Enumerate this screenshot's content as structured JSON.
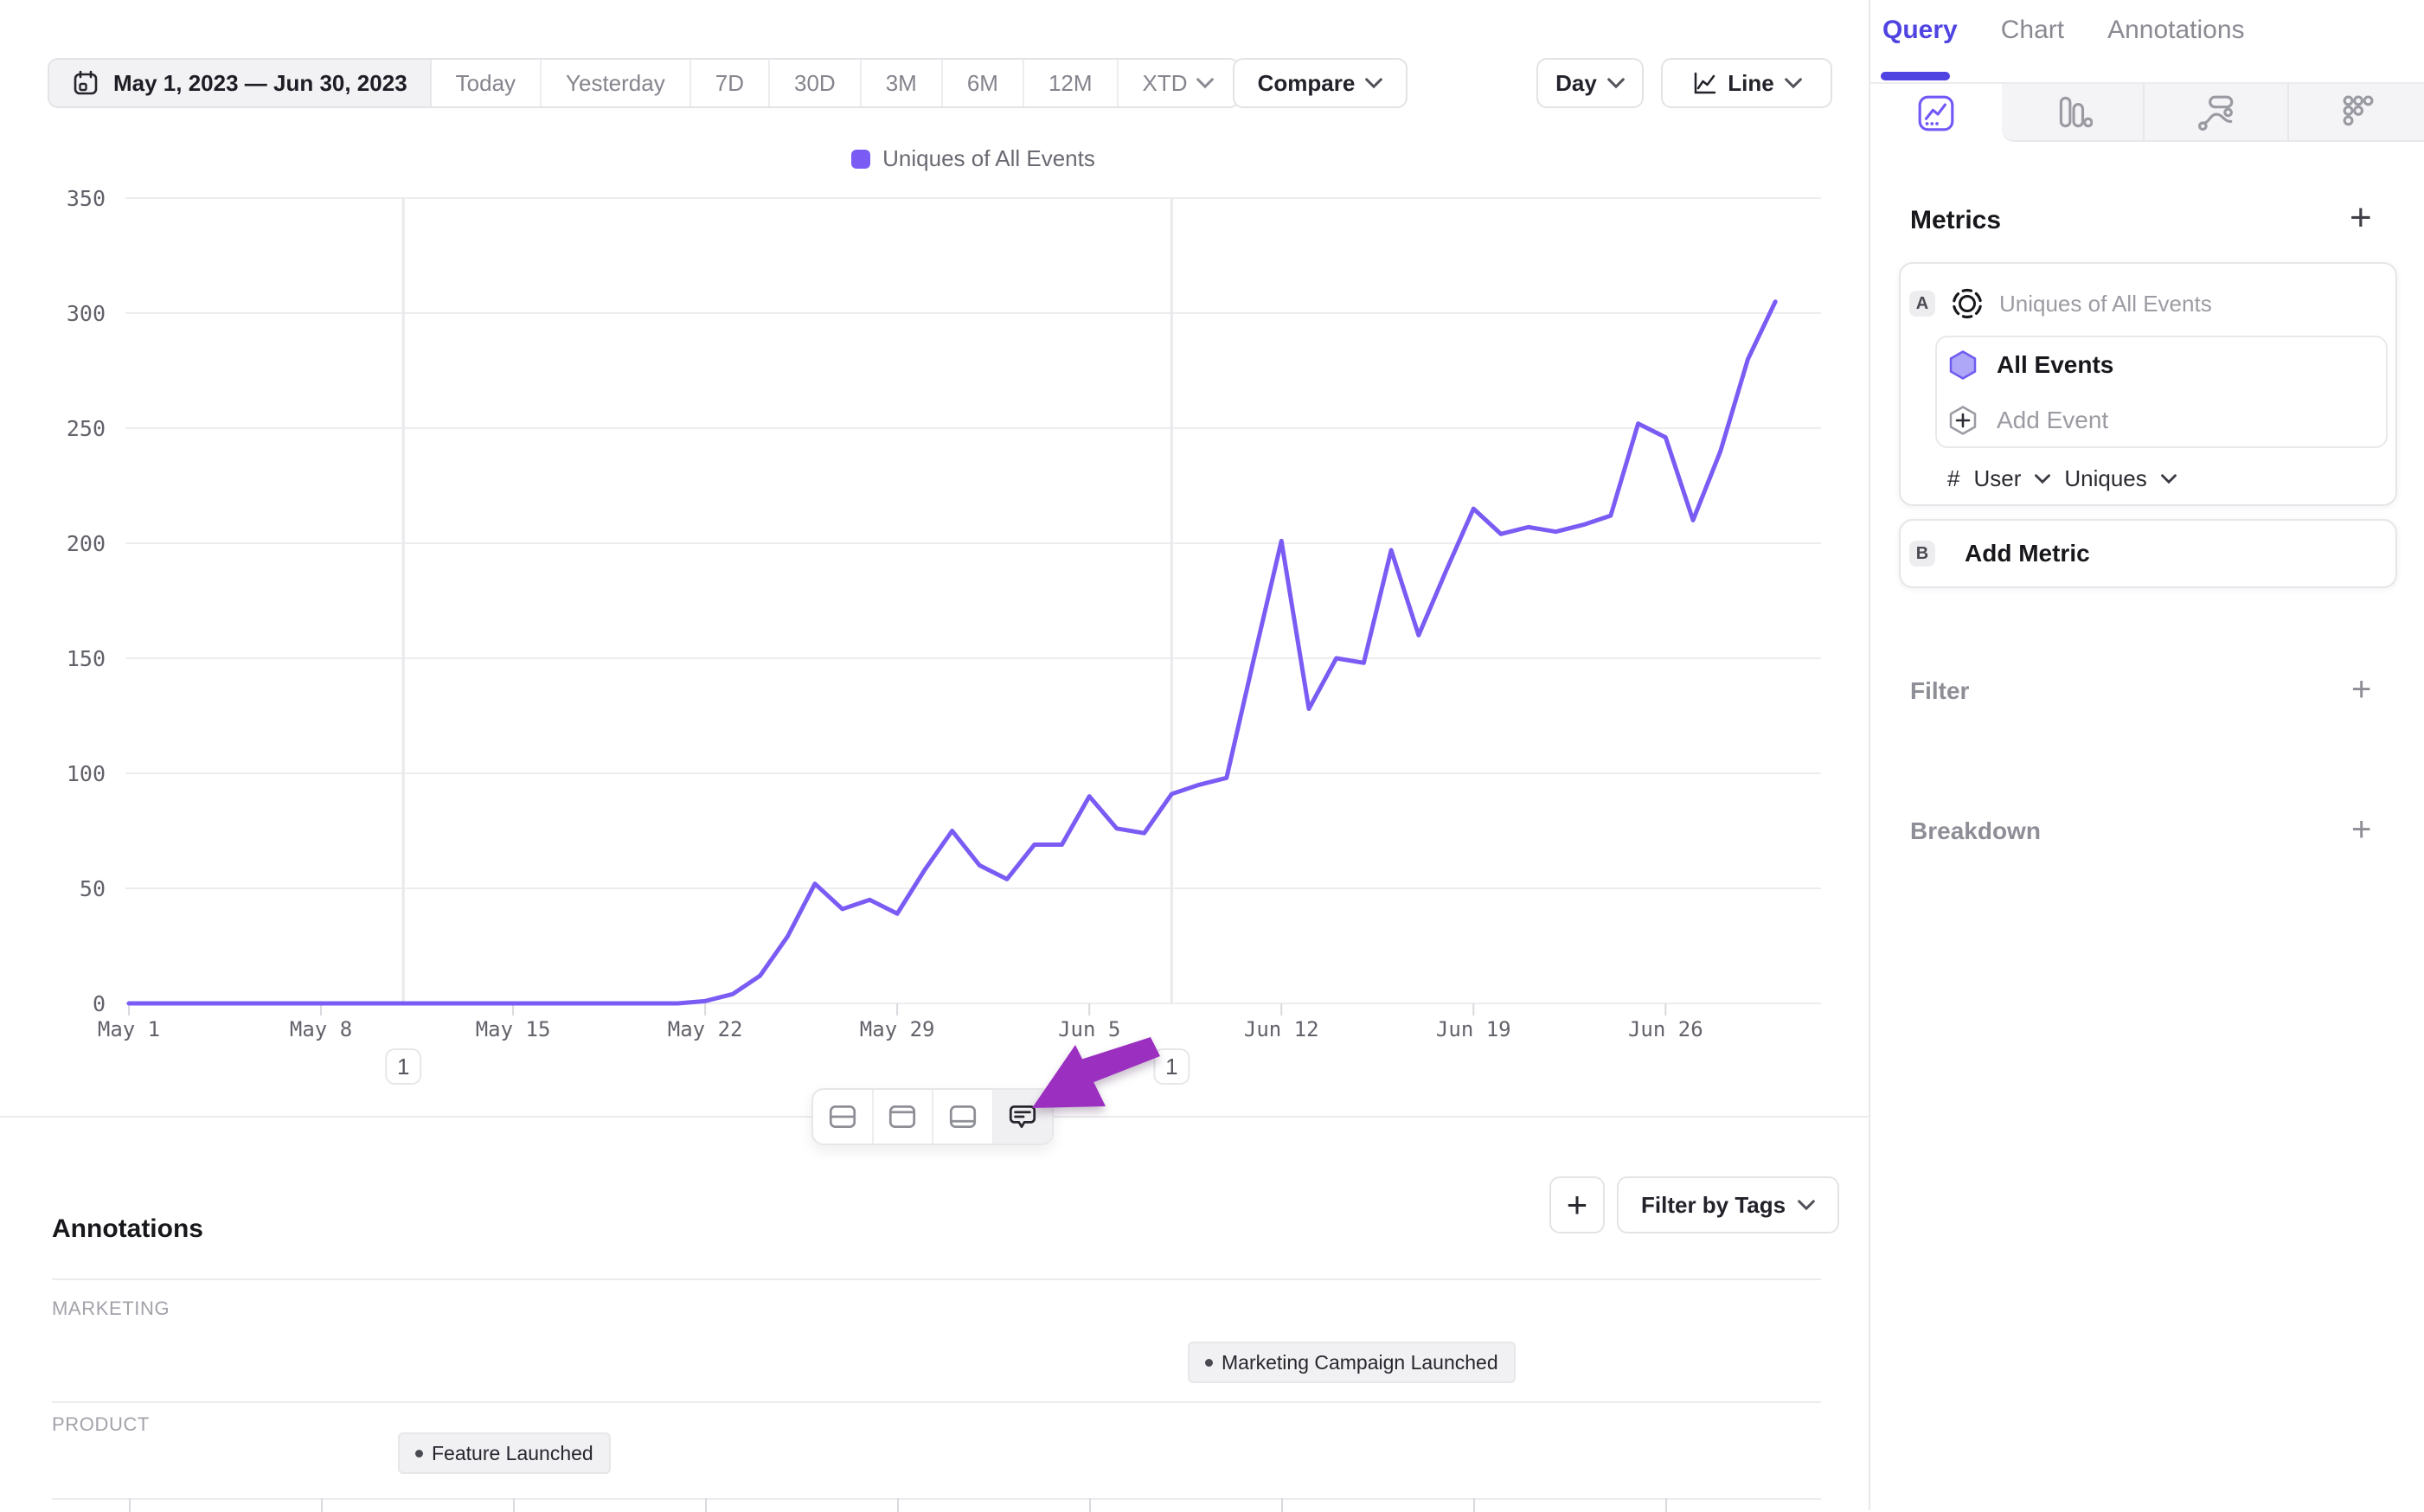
{
  "toolbar": {
    "date_range": "May 1, 2023 — Jun 30, 2023",
    "range_buttons": [
      "Today",
      "Yesterday",
      "7D",
      "30D",
      "3M",
      "6M",
      "12M"
    ],
    "xtd_label": "XTD",
    "compare_label": "Compare",
    "granularity_label": "Day",
    "chart_type_label": "Line"
  },
  "chart_data": {
    "type": "line",
    "series_name": "Uniques of All Events",
    "line_color": "#7a5cf4",
    "legend_position": "top-center",
    "grid": "horizontal",
    "ylim": [
      0,
      350
    ],
    "y_ticks": [
      350,
      300,
      250,
      200,
      150,
      100,
      50,
      0
    ],
    "x_tick_labels": [
      "May 1",
      "May 8",
      "May 15",
      "May 22",
      "May 29",
      "Jun 5",
      "Jun 12",
      "Jun 19",
      "Jun 26"
    ],
    "x": [
      "May 1",
      "May 2",
      "May 3",
      "May 4",
      "May 5",
      "May 6",
      "May 7",
      "May 8",
      "May 9",
      "May 10",
      "May 11",
      "May 12",
      "May 13",
      "May 14",
      "May 15",
      "May 16",
      "May 17",
      "May 18",
      "May 19",
      "May 20",
      "May 21",
      "May 22",
      "May 23",
      "May 24",
      "May 25",
      "May 26",
      "May 27",
      "May 28",
      "May 29",
      "May 30",
      "May 31",
      "Jun 1",
      "Jun 2",
      "Jun 3",
      "Jun 4",
      "Jun 5",
      "Jun 6",
      "Jun 7",
      "Jun 8",
      "Jun 9",
      "Jun 10",
      "Jun 11",
      "Jun 12",
      "Jun 13",
      "Jun 14",
      "Jun 15",
      "Jun 16",
      "Jun 17",
      "Jun 18",
      "Jun 19",
      "Jun 20",
      "Jun 21",
      "Jun 22",
      "Jun 23",
      "Jun 24",
      "Jun 25",
      "Jun 26",
      "Jun 27",
      "Jun 28",
      "Jun 29",
      "Jun 30"
    ],
    "values": [
      0,
      0,
      0,
      0,
      0,
      0,
      0,
      0,
      0,
      0,
      0,
      0,
      0,
      0,
      0,
      0,
      0,
      0,
      0,
      0,
      0,
      1,
      4,
      12,
      29,
      52,
      41,
      45,
      39,
      58,
      75,
      60,
      54,
      69,
      69,
      90,
      76,
      74,
      91,
      95,
      98,
      150,
      201,
      128,
      150,
      148,
      197,
      160,
      188,
      215,
      204,
      207,
      205,
      208,
      212,
      252,
      246,
      210,
      240,
      280,
      305
    ],
    "annotation_markers": [
      {
        "date": "May 11",
        "badge": "1"
      },
      {
        "date": "Jun 8",
        "badge": "1"
      }
    ]
  },
  "chart_toolbar": {
    "buttons": [
      "split-horizontal",
      "panel-top",
      "panel-bottom",
      "comment"
    ],
    "active": "comment"
  },
  "annotations_panel": {
    "title": "Annotations",
    "add_label": "+",
    "filter_by_tags_label": "Filter by Tags",
    "groups": [
      {
        "label": "MARKETING",
        "items": [
          {
            "text": "Marketing Campaign Launched",
            "date": "Jun 8"
          }
        ]
      },
      {
        "label": "PRODUCT",
        "items": [
          {
            "text": "Feature Launched",
            "date": "May 11"
          }
        ]
      }
    ]
  },
  "sidebar": {
    "tabs": [
      "Query",
      "Chart",
      "Annotations"
    ],
    "active_tab": "Query",
    "chart_type_tabs": [
      "line-chart",
      "bar-chart",
      "stream-chart",
      "grid-dots"
    ],
    "metrics": {
      "title": "Metrics",
      "card_a": {
        "badge": "A",
        "name": "Uniques of All Events",
        "events": [
          {
            "label": "All Events"
          }
        ],
        "add_event_label": "Add Event",
        "measure": {
          "prefix": "#",
          "entity": "User",
          "aggregation": "Uniques"
        }
      },
      "card_b": {
        "badge": "B",
        "label": "Add Metric"
      }
    },
    "sections": [
      {
        "label": "Filter"
      },
      {
        "label": "Breakdown"
      }
    ]
  },
  "colors": {
    "accent_purple": "#7a5cf4",
    "tab_purple": "#4f43e2",
    "arrow_purple": "#9b2fc0",
    "hexagon_fill": "#aea6f6",
    "hexagon_stroke": "#6f5bf0"
  }
}
